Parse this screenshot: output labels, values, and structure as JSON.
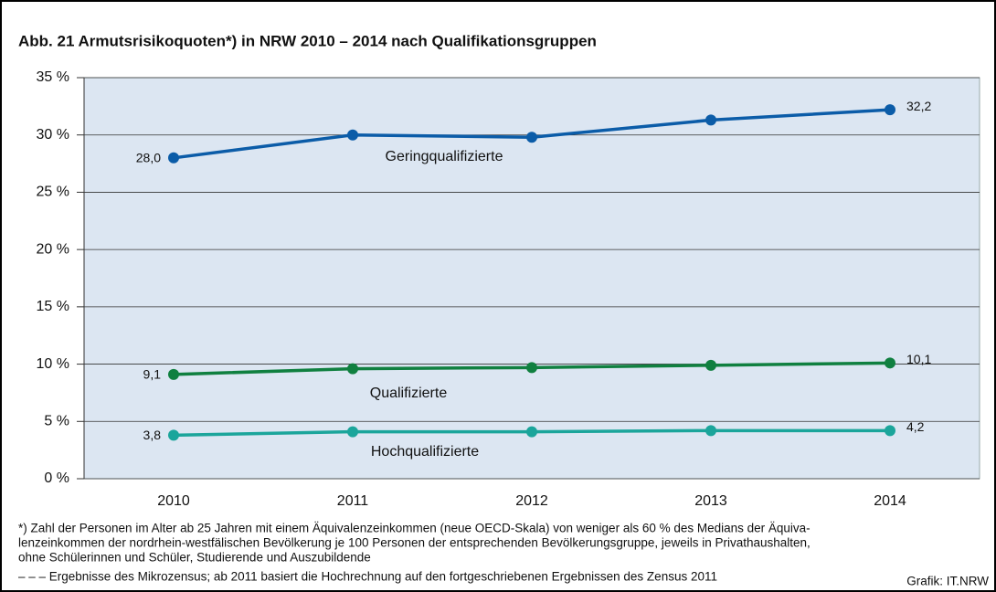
{
  "chart_data": {
    "type": "line",
    "title": "Abb. 21   Armutsrisikoquoten*) in NRW 2010 – 2014 nach Qualifikationsgruppen",
    "categories": [
      "2010",
      "2011",
      "2012",
      "2013",
      "2014"
    ],
    "series": [
      {
        "name": "Geringqualifizierte",
        "color": "#0b5ca8",
        "values": [
          28.0,
          30.0,
          29.8,
          31.3,
          32.2
        ],
        "value_labels": [
          "28,0",
          null,
          null,
          null,
          "32,2"
        ]
      },
      {
        "name": "Qualifizierte",
        "color": "#108040",
        "values": [
          9.1,
          9.6,
          9.7,
          9.9,
          10.1
        ],
        "value_labels": [
          "9,1",
          null,
          null,
          null,
          "10,1"
        ]
      },
      {
        "name": "Hochqualifizierte",
        "color": "#1ba59b",
        "values": [
          3.8,
          4.1,
          4.1,
          4.2,
          4.2
        ],
        "value_labels": [
          "3,8",
          null,
          null,
          null,
          "4,2"
        ]
      }
    ],
    "ylim": [
      0,
      35
    ],
    "yticks": [
      {
        "value": 0,
        "label": "0 %"
      },
      {
        "value": 5,
        "label": "5 %"
      },
      {
        "value": 10,
        "label": "10 %"
      },
      {
        "value": 15,
        "label": "15 %"
      },
      {
        "value": 20,
        "label": "20 %"
      },
      {
        "value": 25,
        "label": "25 %"
      },
      {
        "value": 30,
        "label": "30 %"
      },
      {
        "value": 35,
        "label": "35 %"
      }
    ],
    "grid": true,
    "footnotes": [
      "*) Zahl der Personen im Alter ab 25 Jahren mit einem Äquivalenzeinkommen (neue OECD-Skala) von weniger als 60 % des Medians der Äquiva-",
      "lenzeinkommen der nordrhein-westfälischen Bevölkerung je 100 Personen der entsprechenden Bevölkerungsgruppe, jeweils in Privathaushalten,",
      "ohne Schülerinnen und Schüler, Studierende und Auszubildende",
      "– – – Ergebnisse des Mikrozensus; ab 2011 basiert die Hochrechnung auf den fortgeschriebenen Ergebnissen des Zensus 2011"
    ],
    "source": "Grafik: IT.NRW"
  }
}
